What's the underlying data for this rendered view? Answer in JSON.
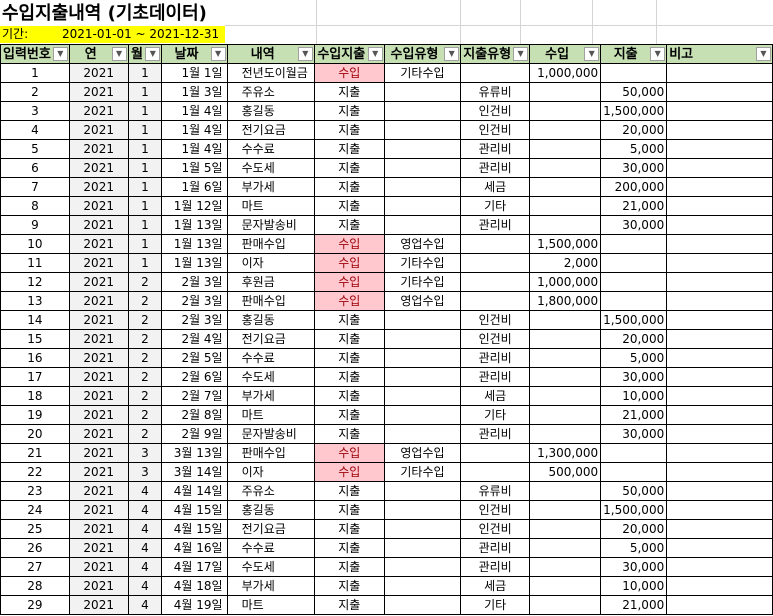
{
  "title": "수입지출내역 (기초데이터)",
  "period": {
    "label": "기간:",
    "value": "2021-01-01 ~ 2021-12-31"
  },
  "colors": {
    "header_bg": "#c6e0b4",
    "period_bg": "#ffff00",
    "income_bg": "#ffc7ce",
    "income_text": "#9c0006",
    "year_month_bg": "#f2f2f2"
  },
  "headers": [
    "입력번호",
    "연",
    "월",
    "날짜",
    "내역",
    "수입지출",
    "수입유형",
    "지출유형",
    "수입",
    "지출",
    "비고"
  ],
  "rows": [
    [
      "1",
      "2021",
      "1",
      "1월 1일",
      "전년도이월금",
      "수입",
      "기타수입",
      "",
      "1,000,000",
      "",
      ""
    ],
    [
      "2",
      "2021",
      "1",
      "1월 3일",
      "주유소",
      "지출",
      "",
      "유류비",
      "",
      "50,000",
      ""
    ],
    [
      "3",
      "2021",
      "1",
      "1월 4일",
      "홍길동",
      "지출",
      "",
      "인건비",
      "",
      "1,500,000",
      ""
    ],
    [
      "4",
      "2021",
      "1",
      "1월 4일",
      "전기요금",
      "지출",
      "",
      "인건비",
      "",
      "20,000",
      ""
    ],
    [
      "5",
      "2021",
      "1",
      "1월 4일",
      "수수료",
      "지출",
      "",
      "관리비",
      "",
      "5,000",
      ""
    ],
    [
      "6",
      "2021",
      "1",
      "1월 5일",
      "수도세",
      "지출",
      "",
      "관리비",
      "",
      "30,000",
      ""
    ],
    [
      "7",
      "2021",
      "1",
      "1월 6일",
      "부가세",
      "지출",
      "",
      "세금",
      "",
      "200,000",
      ""
    ],
    [
      "8",
      "2021",
      "1",
      "1월 12일",
      "마트",
      "지출",
      "",
      "기타",
      "",
      "21,000",
      ""
    ],
    [
      "9",
      "2021",
      "1",
      "1월 13일",
      "문자발송비",
      "지출",
      "",
      "관리비",
      "",
      "30,000",
      ""
    ],
    [
      "10",
      "2021",
      "1",
      "1월 13일",
      "판매수입",
      "수입",
      "영업수입",
      "",
      "1,500,000",
      "",
      ""
    ],
    [
      "11",
      "2021",
      "1",
      "1월 13일",
      "이자",
      "수입",
      "기타수입",
      "",
      "2,000",
      "",
      ""
    ],
    [
      "12",
      "2021",
      "2",
      "2월 3일",
      "후원금",
      "수입",
      "기타수입",
      "",
      "1,000,000",
      "",
      ""
    ],
    [
      "13",
      "2021",
      "2",
      "2월 3일",
      "판매수입",
      "수입",
      "영업수입",
      "",
      "1,800,000",
      "",
      ""
    ],
    [
      "14",
      "2021",
      "2",
      "2월 3일",
      "홍길동",
      "지출",
      "",
      "인건비",
      "",
      "1,500,000",
      ""
    ],
    [
      "15",
      "2021",
      "2",
      "2월 4일",
      "전기요금",
      "지출",
      "",
      "인건비",
      "",
      "20,000",
      ""
    ],
    [
      "16",
      "2021",
      "2",
      "2월 5일",
      "수수료",
      "지출",
      "",
      "관리비",
      "",
      "5,000",
      ""
    ],
    [
      "17",
      "2021",
      "2",
      "2월 6일",
      "수도세",
      "지출",
      "",
      "관리비",
      "",
      "30,000",
      ""
    ],
    [
      "18",
      "2021",
      "2",
      "2월 7일",
      "부가세",
      "지출",
      "",
      "세금",
      "",
      "10,000",
      ""
    ],
    [
      "19",
      "2021",
      "2",
      "2월 8일",
      "마트",
      "지출",
      "",
      "기타",
      "",
      "21,000",
      ""
    ],
    [
      "20",
      "2021",
      "2",
      "2월 9일",
      "문자발송비",
      "지출",
      "",
      "관리비",
      "",
      "30,000",
      ""
    ],
    [
      "21",
      "2021",
      "3",
      "3월 13일",
      "판매수입",
      "수입",
      "영업수입",
      "",
      "1,300,000",
      "",
      ""
    ],
    [
      "22",
      "2021",
      "3",
      "3월 14일",
      "이자",
      "수입",
      "기타수입",
      "",
      "500,000",
      "",
      ""
    ],
    [
      "23",
      "2021",
      "4",
      "4월 14일",
      "주유소",
      "지출",
      "",
      "유류비",
      "",
      "50,000",
      ""
    ],
    [
      "24",
      "2021",
      "4",
      "4월 15일",
      "홍길동",
      "지출",
      "",
      "인건비",
      "",
      "1,500,000",
      ""
    ],
    [
      "25",
      "2021",
      "4",
      "4월 15일",
      "전기요금",
      "지출",
      "",
      "인건비",
      "",
      "20,000",
      ""
    ],
    [
      "26",
      "2021",
      "4",
      "4월 16일",
      "수수료",
      "지출",
      "",
      "관리비",
      "",
      "5,000",
      ""
    ],
    [
      "27",
      "2021",
      "4",
      "4월 17일",
      "수도세",
      "지출",
      "",
      "관리비",
      "",
      "30,000",
      ""
    ],
    [
      "28",
      "2021",
      "4",
      "4월 18일",
      "부가세",
      "지출",
      "",
      "세금",
      "",
      "10,000",
      ""
    ],
    [
      "29",
      "2021",
      "4",
      "4월 19일",
      "마트",
      "지출",
      "",
      "기타",
      "",
      "21,000",
      ""
    ]
  ]
}
